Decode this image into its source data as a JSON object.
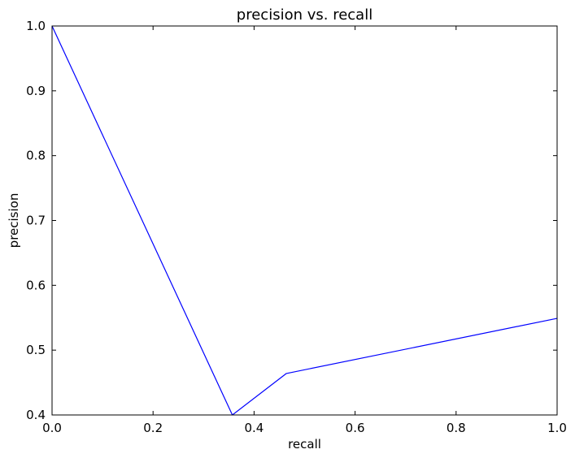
{
  "chart_data": {
    "type": "line",
    "title": "precision vs. recall",
    "xlabel": "recall",
    "ylabel": "precision",
    "xlim": [
      0.0,
      1.0
    ],
    "ylim": [
      0.4,
      1.0
    ],
    "xticks": [
      "0.0",
      "0.2",
      "0.4",
      "0.6",
      "0.8",
      "1.0"
    ],
    "yticks": [
      "0.4",
      "0.5",
      "0.6",
      "0.7",
      "0.8",
      "0.9",
      "1.0"
    ],
    "grid": false,
    "series": [
      {
        "color": "#0000ff",
        "x": [
          0.0,
          0.357,
          0.464,
          1.0
        ],
        "y": [
          1.0,
          0.4,
          0.464,
          0.549
        ]
      }
    ]
  }
}
